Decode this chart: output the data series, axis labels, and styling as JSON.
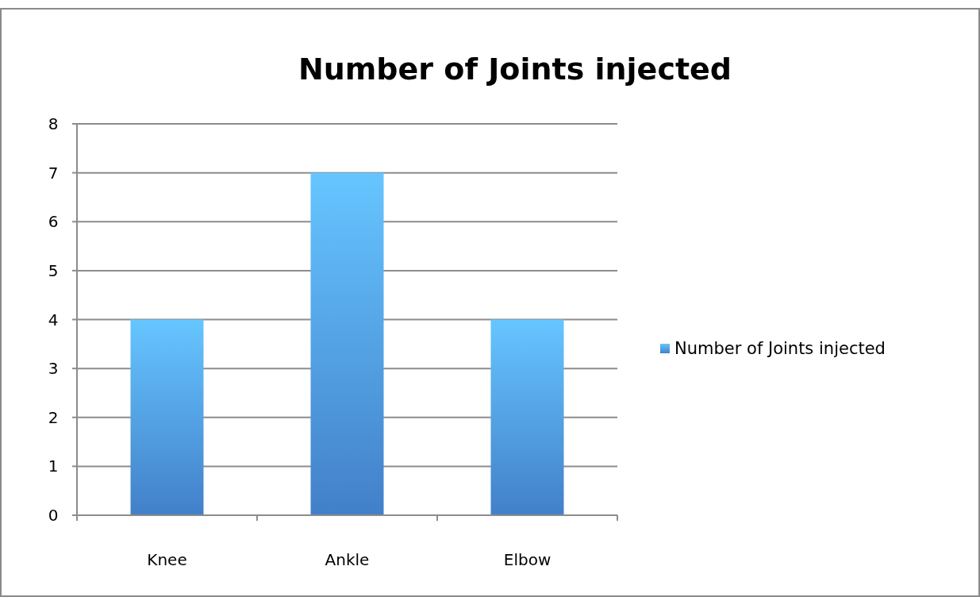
{
  "chart_data": {
    "type": "bar",
    "title": "Number of Joints injected",
    "categories": [
      "Knee",
      "Ankle",
      "Elbow"
    ],
    "series": [
      {
        "name": "Number of Joints injected",
        "color": "#4a8fe0",
        "values": [
          4,
          7,
          4
        ]
      }
    ],
    "ylim": [
      0,
      8
    ],
    "yticks": [
      0,
      1,
      2,
      3,
      4,
      5,
      6,
      7,
      8
    ],
    "grid": "y",
    "legend": "right"
  }
}
